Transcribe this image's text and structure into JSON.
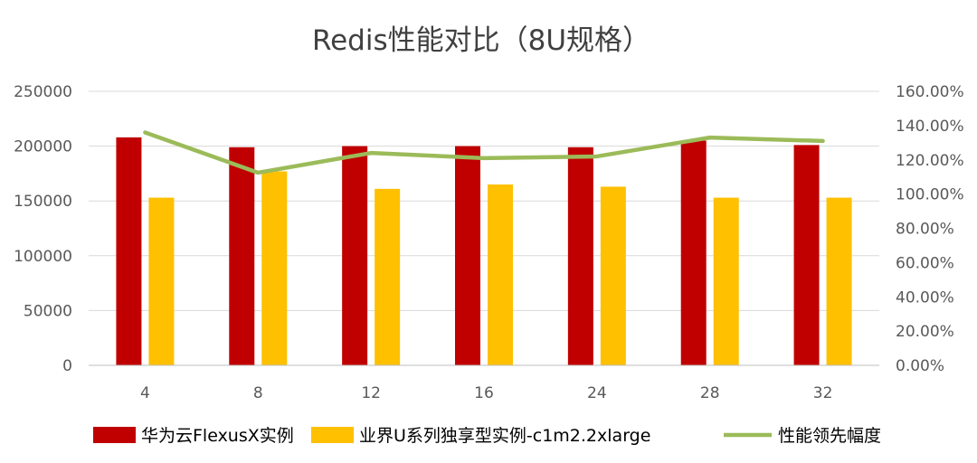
{
  "chart_data": {
    "type": "bar",
    "title": "Redis性能对比（8U规格）",
    "categories": [
      "4",
      "8",
      "12",
      "16",
      "24",
      "28",
      "32"
    ],
    "series": [
      {
        "name": "华为云FlexusX实例",
        "type": "bar",
        "axis": "left",
        "color": "#c00000",
        "values": [
          208000,
          199000,
          200000,
          200000,
          199000,
          205000,
          201000
        ]
      },
      {
        "name": "业界U系列独享型实例-c1m2.2xlarge",
        "type": "bar",
        "axis": "left",
        "color": "#ffc000",
        "values": [
          153000,
          177000,
          161000,
          165000,
          163000,
          153000,
          153000
        ]
      },
      {
        "name": "性能领先幅度",
        "type": "line",
        "axis": "right",
        "color": "#9bbb59",
        "values": [
          1.36,
          1.125,
          1.24,
          1.21,
          1.22,
          1.33,
          1.31
        ]
      }
    ],
    "y_left": {
      "ylim": [
        0,
        250000
      ],
      "ticks": [
        0,
        50000,
        100000,
        150000,
        200000,
        250000
      ],
      "tick_labels": [
        "0",
        "50000",
        "100000",
        "150000",
        "200000",
        "250000"
      ]
    },
    "y_right": {
      "ylim": [
        0,
        1.6
      ],
      "ticks": [
        0,
        0.2,
        0.4,
        0.6,
        0.8,
        1.0,
        1.2,
        1.4,
        1.6
      ],
      "tick_labels": [
        "0.00%",
        "20.00%",
        "40.00%",
        "60.00%",
        "80.00%",
        "100.00%",
        "120.00%",
        "140.00%",
        "160.00%"
      ]
    },
    "grid": true,
    "legend_position": "bottom"
  }
}
